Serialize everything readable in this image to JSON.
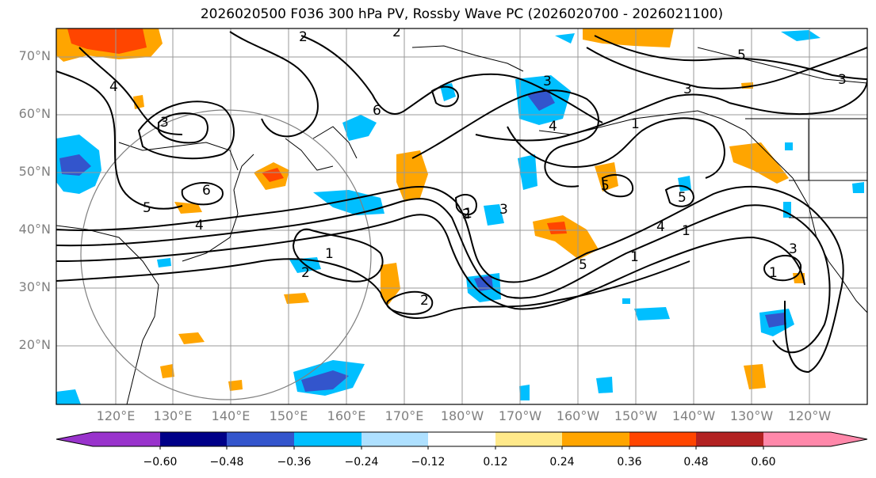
{
  "title": "2026020500 F036 300 hPa PV, Rossby Wave PC (2026020700 - 2026021100)",
  "latitudes": [
    "70°N",
    "60°N",
    "50°N",
    "40°N",
    "30°N",
    "20°N"
  ],
  "longitudes": [
    "120°E",
    "130°E",
    "140°E",
    "150°E",
    "160°E",
    "170°E",
    "180°W",
    "170°W",
    "160°W",
    "150°W",
    "140°W",
    "130°W",
    "120°W"
  ],
  "colorbar": {
    "labels": [
      "−0.60",
      "−0.48",
      "−0.36",
      "−0.24",
      "−0.12",
      "0.12",
      "0.24",
      "0.36",
      "0.48",
      "0.60"
    ],
    "colors": [
      "#9933cc",
      "#000088",
      "#3355cc",
      "#00bfff",
      "#aee0ff",
      "#ffffff",
      "#ffe98a",
      "#ffa500",
      "#ff4500",
      "#b22222",
      "#ff88aa"
    ]
  },
  "contour_labels": [
    "2",
    "2",
    "3",
    "4",
    "5",
    "6",
    "1",
    "1",
    "2",
    "3",
    "4",
    "5",
    "1",
    "2",
    "3",
    "4",
    "5",
    "6",
    "1",
    "1",
    "2",
    "3",
    "4",
    "5",
    "5",
    "3",
    "1",
    "3"
  ]
}
